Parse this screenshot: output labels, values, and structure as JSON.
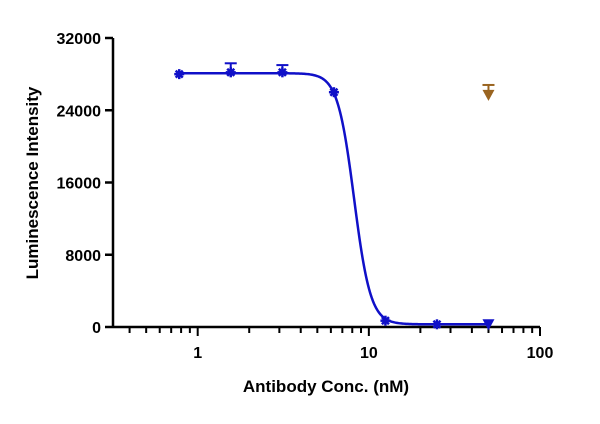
{
  "chart_data": {
    "type": "scatter",
    "title": "",
    "xlabel": "Antibody Conc. (nM)",
    "ylabel": "Luminescence Intensity",
    "xscale": "log",
    "xlim": [
      0.32,
      100
    ],
    "ylim": [
      0,
      32000
    ],
    "xticks": [
      1,
      10,
      100
    ],
    "xtick_labels": [
      "1",
      "10",
      "100"
    ],
    "yticks": [
      0,
      8000,
      16000,
      24000,
      32000
    ],
    "ytick_labels": [
      "0",
      "8000",
      "16000",
      "24000",
      "32000"
    ],
    "grid": false,
    "legend": "none",
    "series": [
      {
        "color": "#1010c8",
        "marker": "star",
        "x": [
          0.78,
          1.56,
          3.125,
          6.25,
          12.5,
          25,
          50
        ],
        "y": [
          28000,
          28200,
          28200,
          26000,
          700,
          300,
          300
        ],
        "err_upper": [
          0,
          1000,
          800,
          0,
          0,
          0,
          0
        ],
        "fit": {
          "model": "4PL",
          "top": 28100,
          "bottom": 300,
          "ic50": 8.2,
          "hill": 9
        }
      },
      {
        "color": "#9a6420",
        "marker": "triangle-down",
        "x": [
          50
        ],
        "y": [
          25700
        ],
        "err_upper": [
          1100
        ]
      }
    ]
  }
}
